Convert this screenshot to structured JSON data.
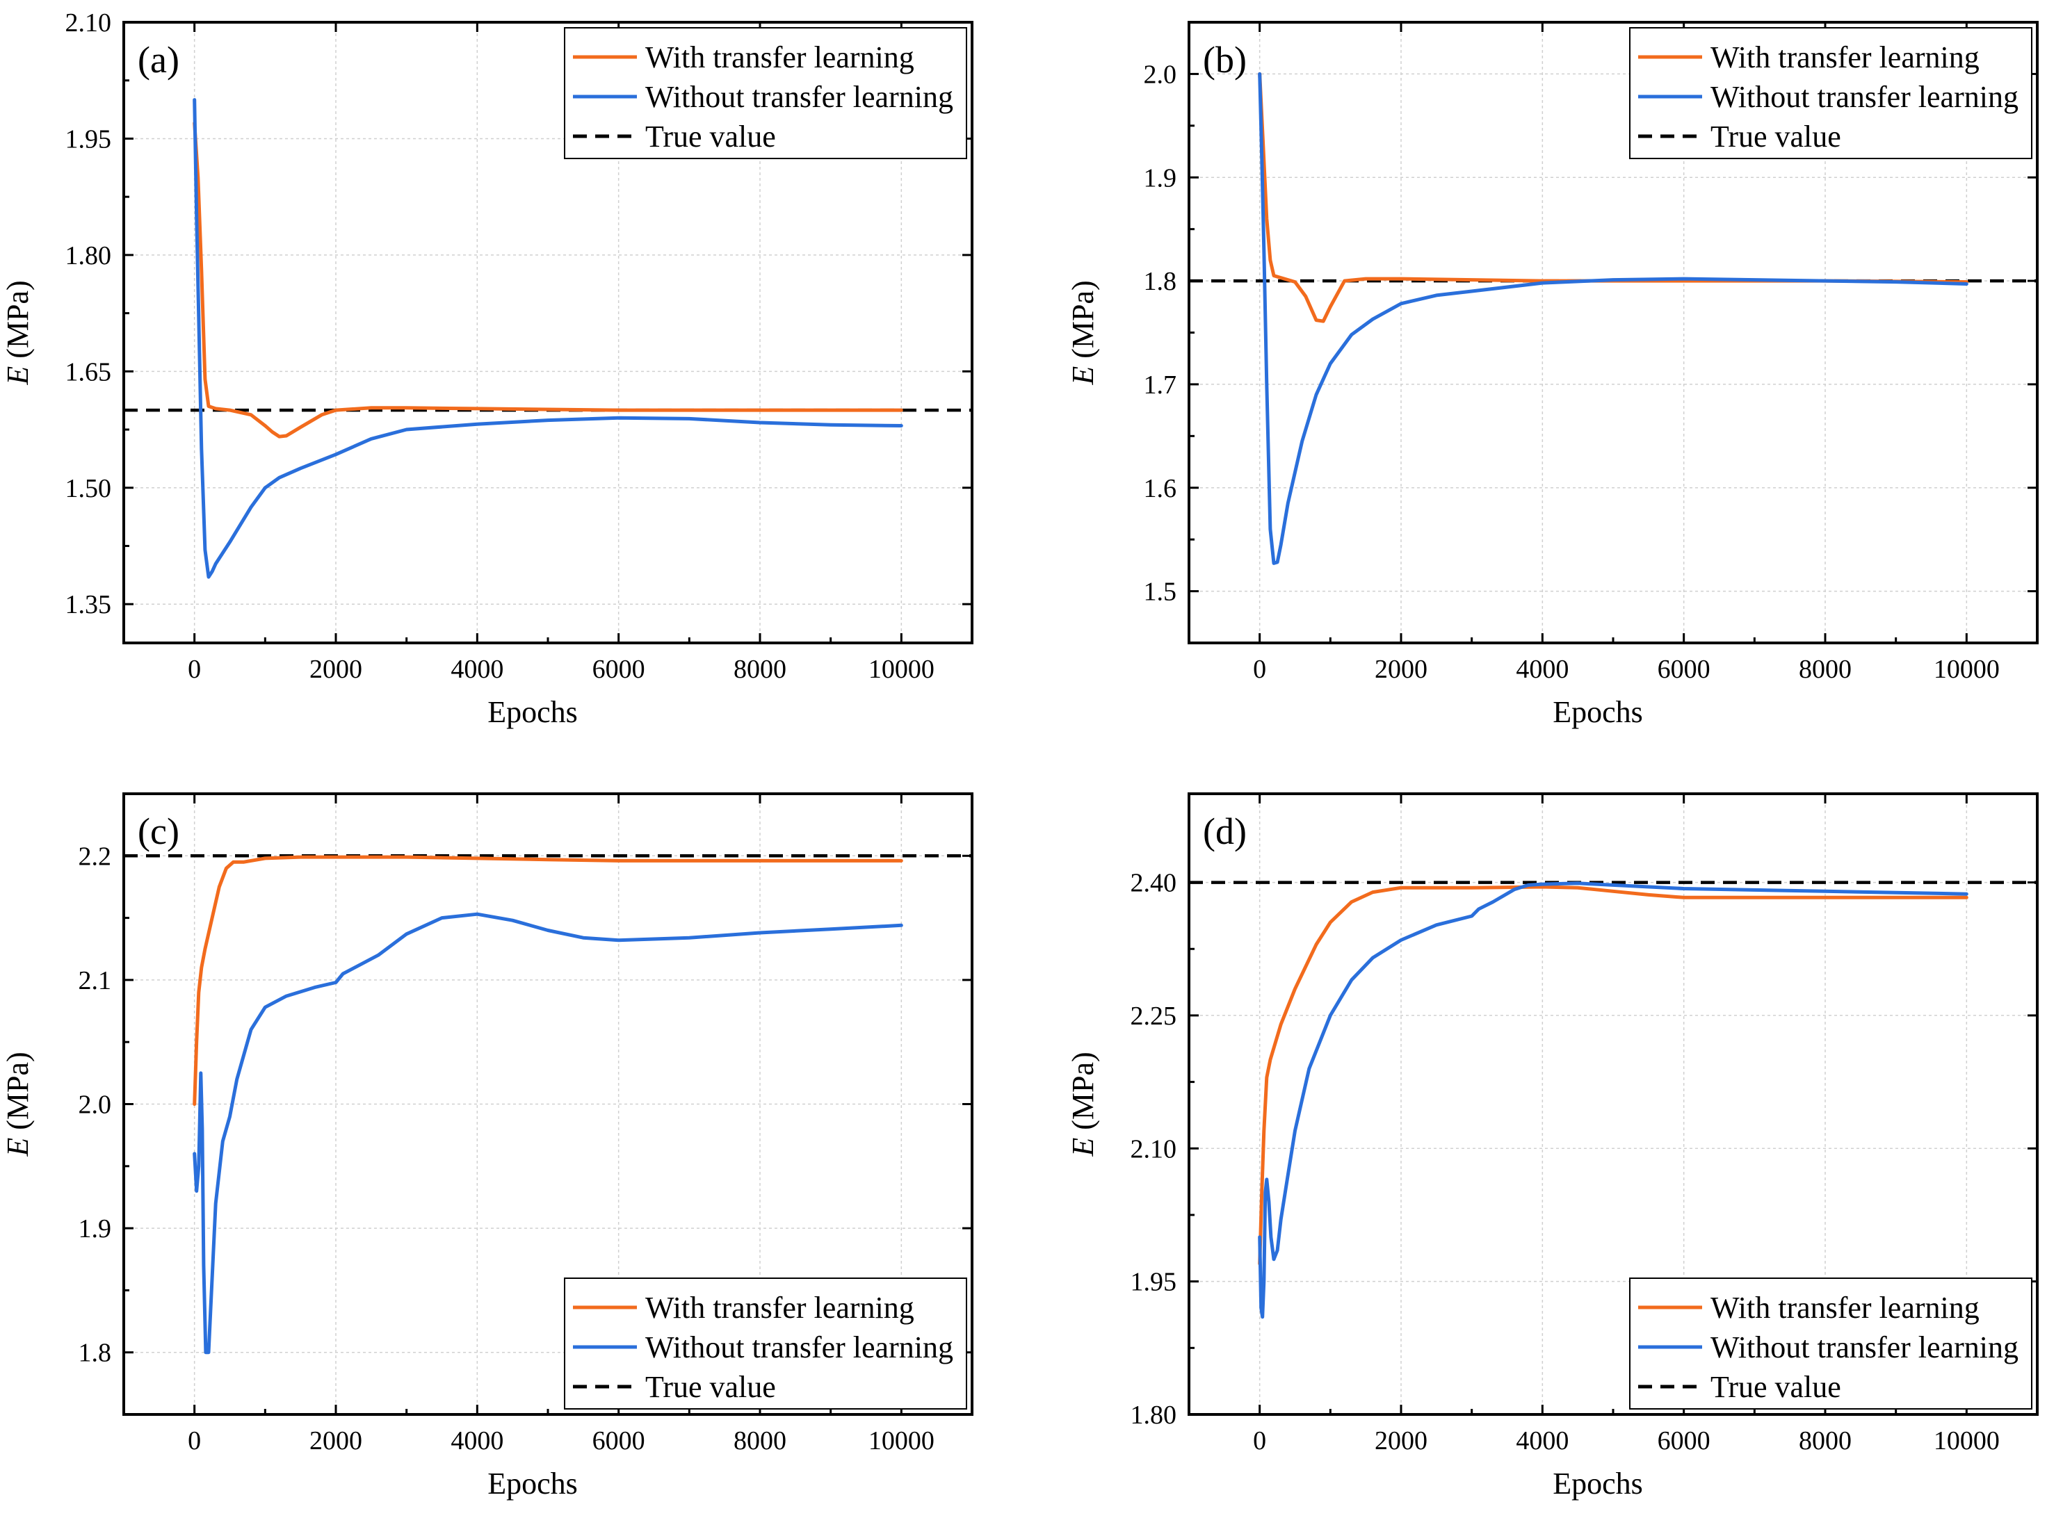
{
  "colors": {
    "with_transfer": "#F26B1D",
    "without_transfer": "#2A6FDB",
    "true_value": "#000000"
  },
  "chart_data": [
    {
      "type": "line",
      "panel_label": "(a)",
      "xlabel": "Epochs",
      "ylabel_symbol": "E",
      "ylabel_unit": " (MPa)",
      "xlim": [
        -1000,
        11000
      ],
      "ylim": [
        1.3,
        2.1
      ],
      "xticks": [
        0,
        2000,
        4000,
        6000,
        8000,
        10000
      ],
      "yticks": [
        1.35,
        1.5,
        1.65,
        1.8,
        1.95,
        2.1
      ],
      "ytick_labels": [
        "1.35",
        "1.50",
        "1.65",
        "1.80",
        "1.95",
        "2.10"
      ],
      "grid": true,
      "legend_position": "top-right",
      "true_value": 1.6,
      "series": [
        {
          "name": "With transfer learning",
          "key": "with",
          "x": [
            0,
            50,
            100,
            150,
            200,
            300,
            500,
            800,
            1000,
            1100,
            1200,
            1300,
            1500,
            1800,
            2000,
            2500,
            3000,
            4000,
            6000,
            8000,
            10000
          ],
          "y": [
            1.97,
            1.9,
            1.78,
            1.64,
            1.605,
            1.602,
            1.6,
            1.594,
            1.58,
            1.572,
            1.566,
            1.567,
            1.578,
            1.594,
            1.6,
            1.603,
            1.603,
            1.602,
            1.6,
            1.6,
            1.6
          ]
        },
        {
          "name": "Without transfer learning",
          "key": "without",
          "x": [
            0,
            30,
            60,
            100,
            150,
            200,
            250,
            300,
            500,
            800,
            1000,
            1200,
            1500,
            2000,
            2500,
            3000,
            4000,
            5000,
            6000,
            7000,
            8000,
            9000,
            10000
          ],
          "y": [
            2.0,
            1.85,
            1.72,
            1.55,
            1.42,
            1.385,
            1.392,
            1.402,
            1.43,
            1.475,
            1.5,
            1.513,
            1.525,
            1.543,
            1.563,
            1.575,
            1.582,
            1.587,
            1.59,
            1.589,
            1.584,
            1.581,
            1.58
          ]
        }
      ]
    },
    {
      "type": "line",
      "panel_label": "(b)",
      "xlabel": "Epochs",
      "ylabel_symbol": "E",
      "ylabel_unit": " (MPa)",
      "xlim": [
        -1000,
        11000
      ],
      "ylim": [
        1.45,
        2.05
      ],
      "xticks": [
        0,
        2000,
        4000,
        6000,
        8000,
        10000
      ],
      "yticks": [
        1.5,
        1.6,
        1.7,
        1.8,
        1.9,
        2.0
      ],
      "ytick_labels": [
        "1.5",
        "1.6",
        "1.7",
        "1.8",
        "1.9",
        "2.0"
      ],
      "grid": true,
      "legend_position": "top-right",
      "true_value": 1.8,
      "series": [
        {
          "name": "With transfer learning",
          "key": "with",
          "x": [
            0,
            50,
            100,
            150,
            200,
            300,
            500,
            650,
            800,
            900,
            1000,
            1200,
            1500,
            2000,
            3000,
            4000,
            6000,
            8000,
            10000
          ],
          "y": [
            2.0,
            1.93,
            1.86,
            1.82,
            1.805,
            1.803,
            1.799,
            1.785,
            1.762,
            1.761,
            1.775,
            1.8,
            1.802,
            1.802,
            1.801,
            1.8,
            1.8,
            1.8,
            1.799
          ]
        },
        {
          "name": "Without transfer learning",
          "key": "without",
          "x": [
            0,
            30,
            60,
            100,
            150,
            200,
            250,
            300,
            400,
            600,
            800,
            1000,
            1300,
            1600,
            2000,
            2500,
            3000,
            4000,
            5000,
            6000,
            7000,
            8000,
            9000,
            10000
          ],
          "y": [
            2.0,
            1.92,
            1.83,
            1.7,
            1.56,
            1.527,
            1.528,
            1.545,
            1.585,
            1.645,
            1.69,
            1.72,
            1.748,
            1.763,
            1.778,
            1.786,
            1.79,
            1.798,
            1.801,
            1.802,
            1.801,
            1.8,
            1.799,
            1.797
          ]
        }
      ]
    },
    {
      "type": "line",
      "panel_label": "(c)",
      "xlabel": "Epochs",
      "ylabel_symbol": "E",
      "ylabel_unit": " (MPa)",
      "xlim": [
        -1000,
        11000
      ],
      "ylim": [
        1.75,
        2.25
      ],
      "xticks": [
        0,
        2000,
        4000,
        6000,
        8000,
        10000
      ],
      "yticks": [
        1.8,
        1.9,
        2.0,
        2.1,
        2.2
      ],
      "ytick_labels": [
        "1.8",
        "1.9",
        "2.0",
        "2.1",
        "2.2"
      ],
      "grid": true,
      "legend_position": "bottom-right",
      "true_value": 2.2,
      "series": [
        {
          "name": "With transfer learning",
          "key": "with",
          "x": [
            0,
            30,
            60,
            100,
            150,
            250,
            350,
            450,
            550,
            700,
            1000,
            1500,
            2000,
            3000,
            4000,
            5000,
            6000,
            8000,
            10000
          ],
          "y": [
            2.0,
            2.05,
            2.09,
            2.11,
            2.125,
            2.15,
            2.175,
            2.19,
            2.195,
            2.195,
            2.198,
            2.199,
            2.199,
            2.199,
            2.198,
            2.197,
            2.196,
            2.196,
            2.196
          ]
        },
        {
          "name": "Without transfer learning",
          "key": "without",
          "x": [
            0,
            30,
            60,
            90,
            110,
            130,
            160,
            200,
            250,
            300,
            400,
            500,
            600,
            800,
            1000,
            1300,
            1700,
            2000,
            2100,
            2300,
            2600,
            3000,
            3500,
            4000,
            4500,
            5000,
            5500,
            6000,
            7000,
            8000,
            9000,
            10000
          ],
          "y": [
            1.96,
            1.93,
            1.95,
            2.025,
            1.98,
            1.87,
            1.8,
            1.8,
            1.86,
            1.92,
            1.97,
            1.99,
            2.02,
            2.06,
            2.078,
            2.087,
            2.094,
            2.098,
            2.105,
            2.111,
            2.12,
            2.137,
            2.15,
            2.153,
            2.148,
            2.14,
            2.134,
            2.132,
            2.134,
            2.138,
            2.141,
            2.144
          ]
        }
      ]
    },
    {
      "type": "line",
      "panel_label": "(d)",
      "xlabel": "Epochs",
      "ylabel_symbol": "E",
      "ylabel_unit": " (MPa)",
      "xlim": [
        -1000,
        11000
      ],
      "ylim": [
        1.8,
        2.5
      ],
      "xticks": [
        0,
        2000,
        4000,
        6000,
        8000,
        10000
      ],
      "yticks": [
        1.8,
        1.95,
        2.1,
        2.25,
        2.4
      ],
      "ytick_labels": [
        "1.80",
        "1.95",
        "2.10",
        "2.25",
        "2.40"
      ],
      "grid": true,
      "legend_position": "bottom-right",
      "true_value": 2.4,
      "series": [
        {
          "name": "With transfer learning",
          "key": "with",
          "x": [
            0,
            30,
            60,
            100,
            150,
            300,
            500,
            800,
            1000,
            1300,
            1600,
            2000,
            3000,
            4000,
            4500,
            5000,
            5500,
            6000,
            7000,
            8000,
            10000
          ],
          "y": [
            1.97,
            2.05,
            2.12,
            2.18,
            2.2,
            2.24,
            2.28,
            2.33,
            2.355,
            2.378,
            2.389,
            2.394,
            2.394,
            2.395,
            2.394,
            2.39,
            2.386,
            2.383,
            2.383,
            2.383,
            2.383
          ]
        },
        {
          "name": "Without transfer learning",
          "key": "without",
          "x": [
            0,
            20,
            40,
            60,
            80,
            100,
            130,
            160,
            200,
            250,
            300,
            400,
            500,
            700,
            1000,
            1300,
            1600,
            2000,
            2500,
            3000,
            3100,
            3300,
            3600,
            3800,
            4000,
            4500,
            5000,
            6000,
            8000,
            10000
          ],
          "y": [
            2.0,
            1.92,
            1.91,
            1.95,
            2.05,
            2.065,
            2.04,
            2.0,
            1.975,
            1.985,
            2.02,
            2.07,
            2.12,
            2.19,
            2.25,
            2.29,
            2.315,
            2.335,
            2.352,
            2.362,
            2.37,
            2.378,
            2.392,
            2.397,
            2.398,
            2.399,
            2.397,
            2.393,
            2.39,
            2.387
          ]
        }
      ]
    }
  ],
  "legend_labels": {
    "with": "With transfer learning",
    "without": "Without transfer learning",
    "true": "True value"
  }
}
